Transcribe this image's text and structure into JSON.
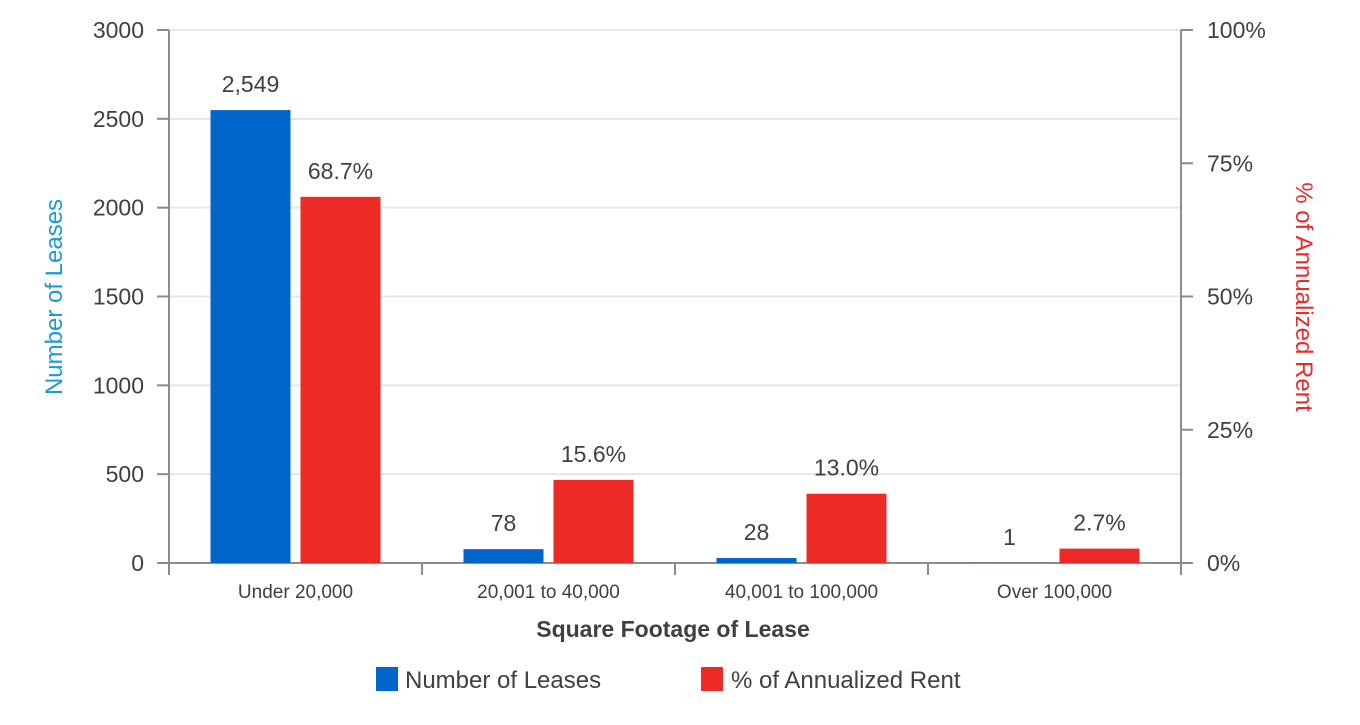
{
  "chart_data": {
    "type": "bar",
    "xlabel": "Square Footage of Lease",
    "ylabel_left": "Number of Leases",
    "ylabel_right": "% of Annualized Rent",
    "categories": [
      "Under 20,000",
      "20,001 to 40,000",
      "40,001 to 100,000",
      "Over 100,000"
    ],
    "series": [
      {
        "name": "Number of Leases",
        "axis": "left",
        "color": "#0066cc",
        "values": [
          2549,
          78,
          28,
          1
        ],
        "labels": [
          "2,549",
          "78",
          "28",
          "1"
        ]
      },
      {
        "name": "% of Annualized Rent",
        "axis": "right",
        "color": "#ee2a27",
        "values": [
          68.7,
          15.6,
          13.0,
          2.7
        ],
        "labels": [
          "68.7%",
          "15.6%",
          "13.0%",
          "2.7%"
        ]
      }
    ],
    "ylim_left": [
      0,
      3000
    ],
    "yticks_left": [
      "0",
      "500",
      "1000",
      "1500",
      "2000",
      "2500",
      "3000"
    ],
    "ylim_right": [
      0,
      100
    ],
    "yticks_right": [
      "0%",
      "25%",
      "50%",
      "75%",
      "100%"
    ],
    "grid": true,
    "legend_position": "bottom",
    "ylabel_left_color": "#1a9ad6",
    "ylabel_right_color": "#e82c2c"
  }
}
